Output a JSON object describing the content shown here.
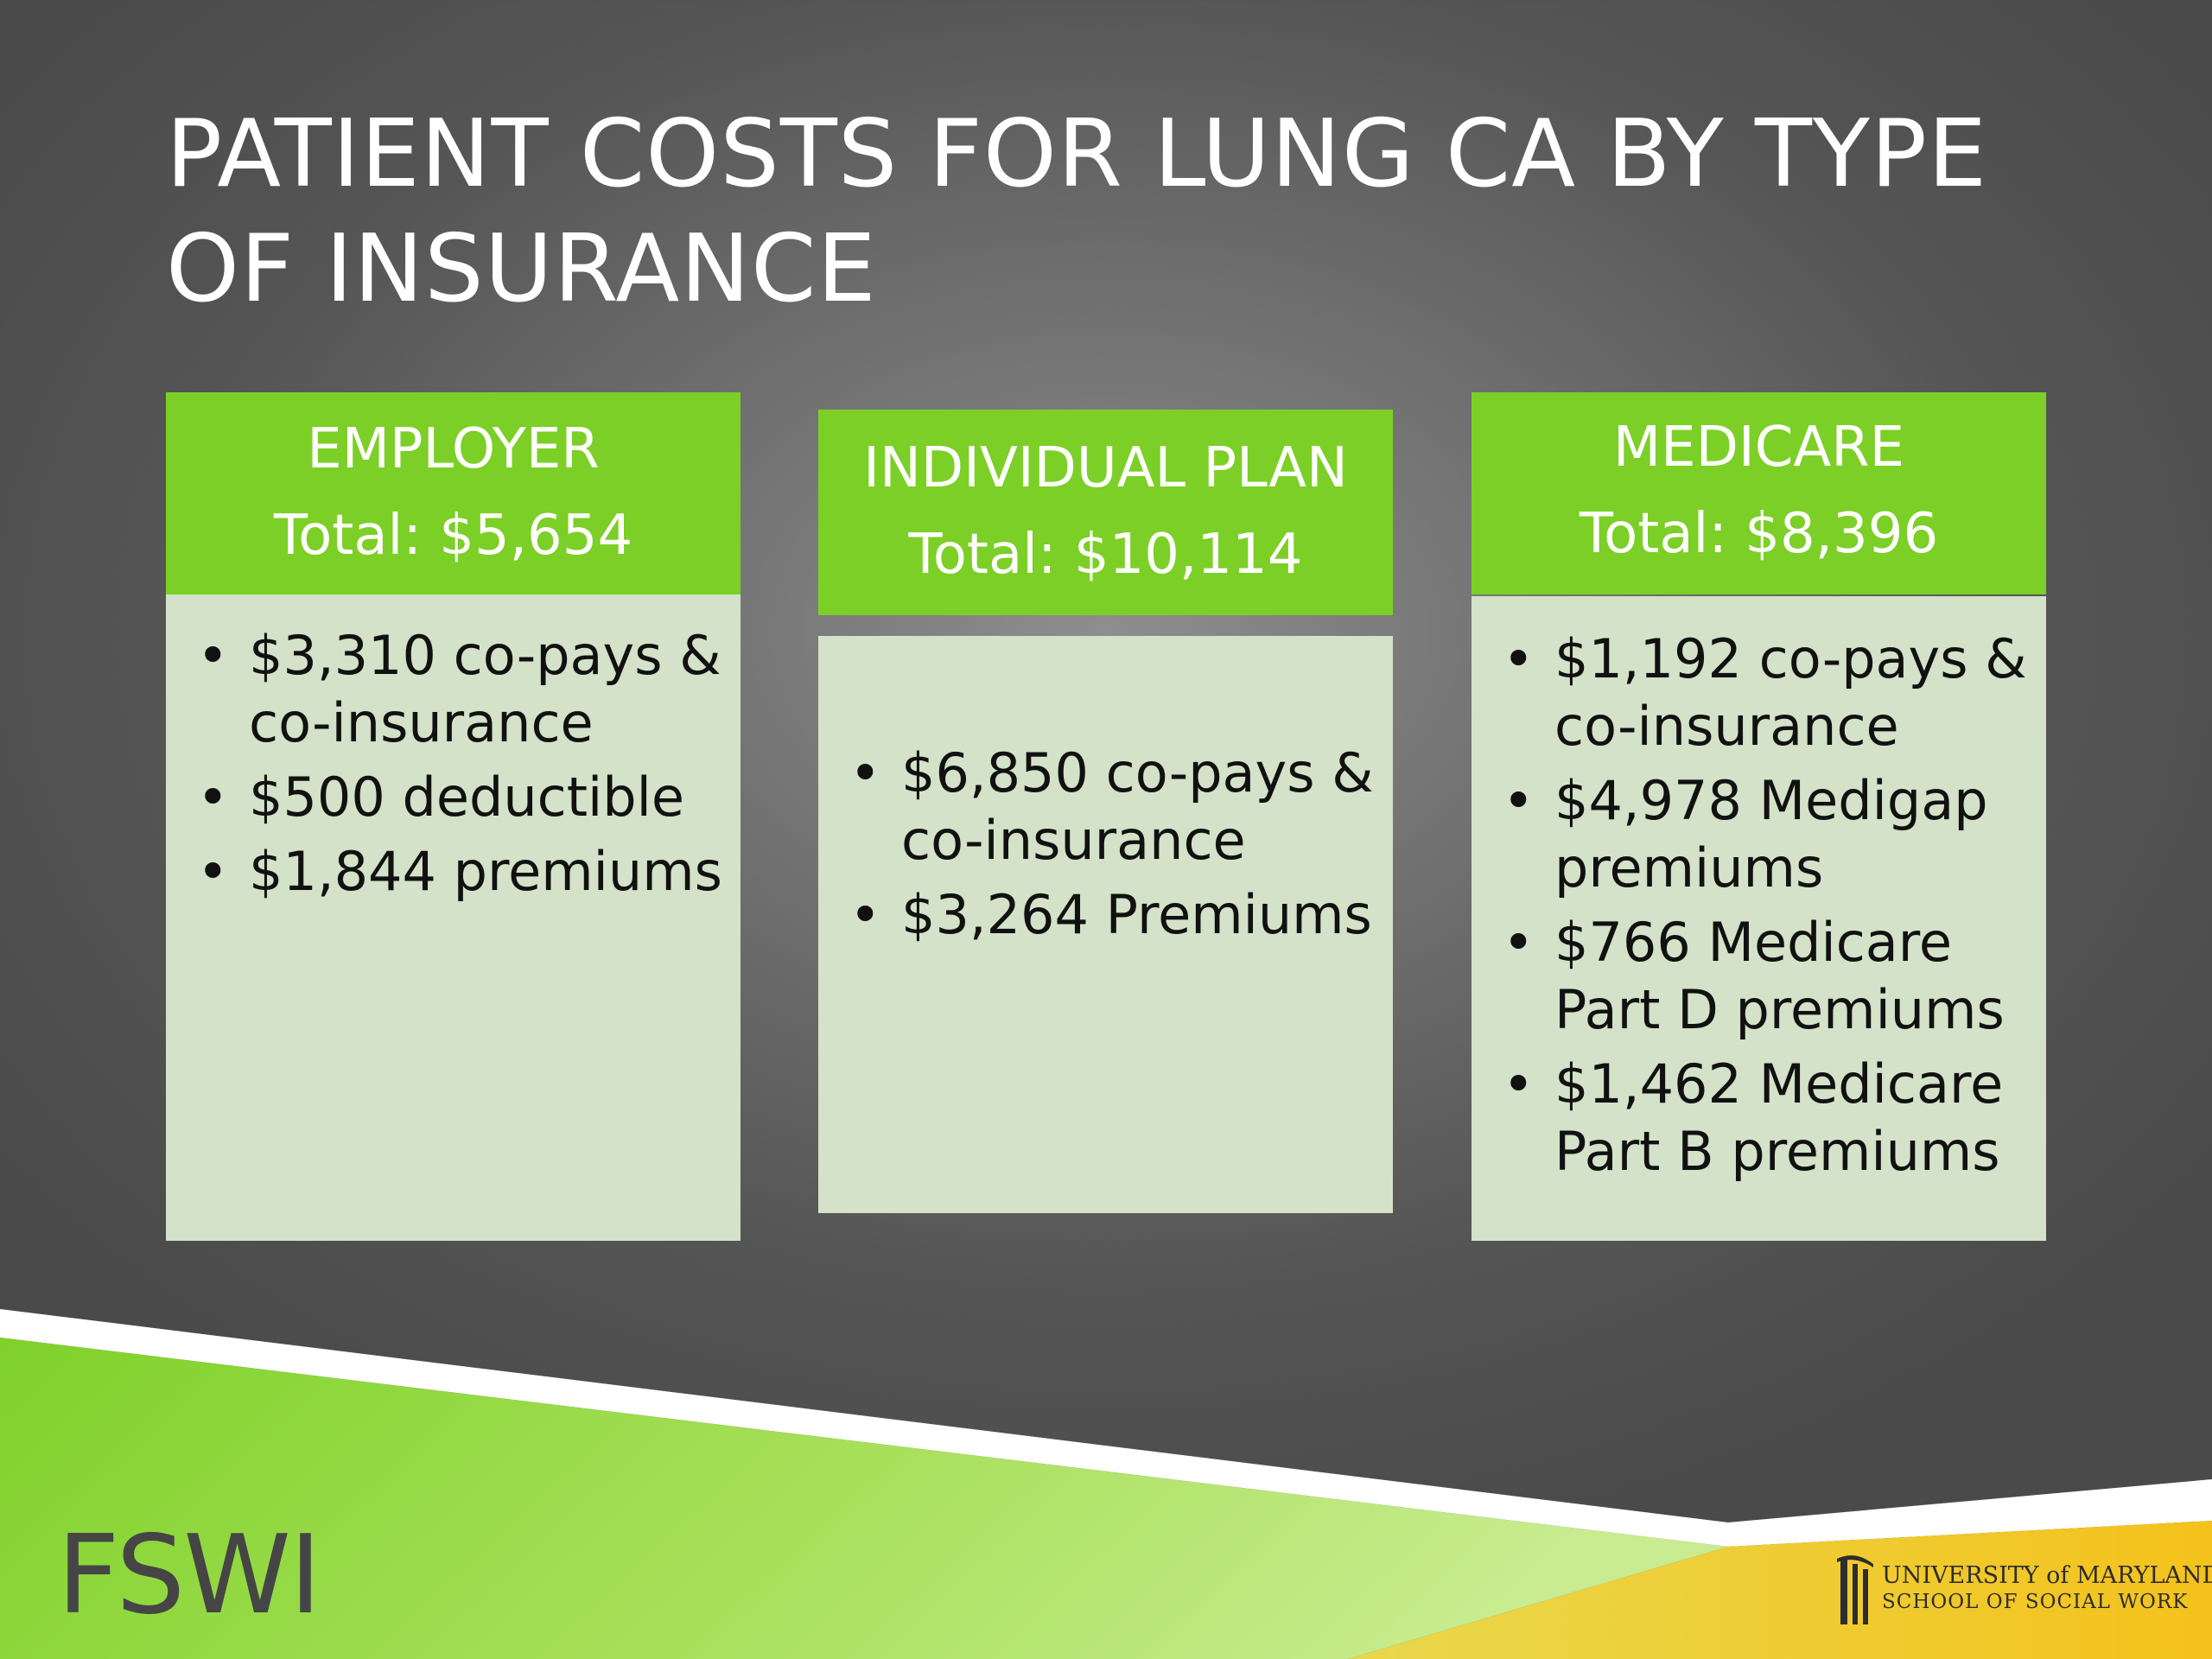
{
  "slide": {
    "title": "PATIENT COSTS FOR LUNG CA BY TYPE OF INSURANCE"
  },
  "cards": [
    {
      "name": "EMPLOYER",
      "total": "Total:  $5,654",
      "items": [
        "$3,310 co-pays & co-insurance",
        "$500 deductible",
        "$1,844 premiums"
      ]
    },
    {
      "name": "INDIVIDUAL PLAN",
      "total": "Total:  $10,114",
      "items": [
        "$6,850 co-pays & co-insurance",
        "$3,264 Premiums"
      ]
    },
    {
      "name": "MEDICARE",
      "total": "Total:  $8,396",
      "items": [
        "$1,192 co-pays & co-insurance",
        "$4,978 Medigap premiums",
        "$766 Medicare Part D premiums",
        "$1,462 Medicare Part B premiums"
      ]
    }
  ],
  "bullet_glyph": "•",
  "footer": {
    "brand": "FSWI",
    "university_line1": "UNIVERSITY of MARYLAND",
    "university_line2": "SCHOOL OF SOCIAL WORK"
  },
  "colors": {
    "header_green": "#7ccf26",
    "body_green": "#d3e2c8",
    "accent_yellow": "#f2c21a"
  }
}
